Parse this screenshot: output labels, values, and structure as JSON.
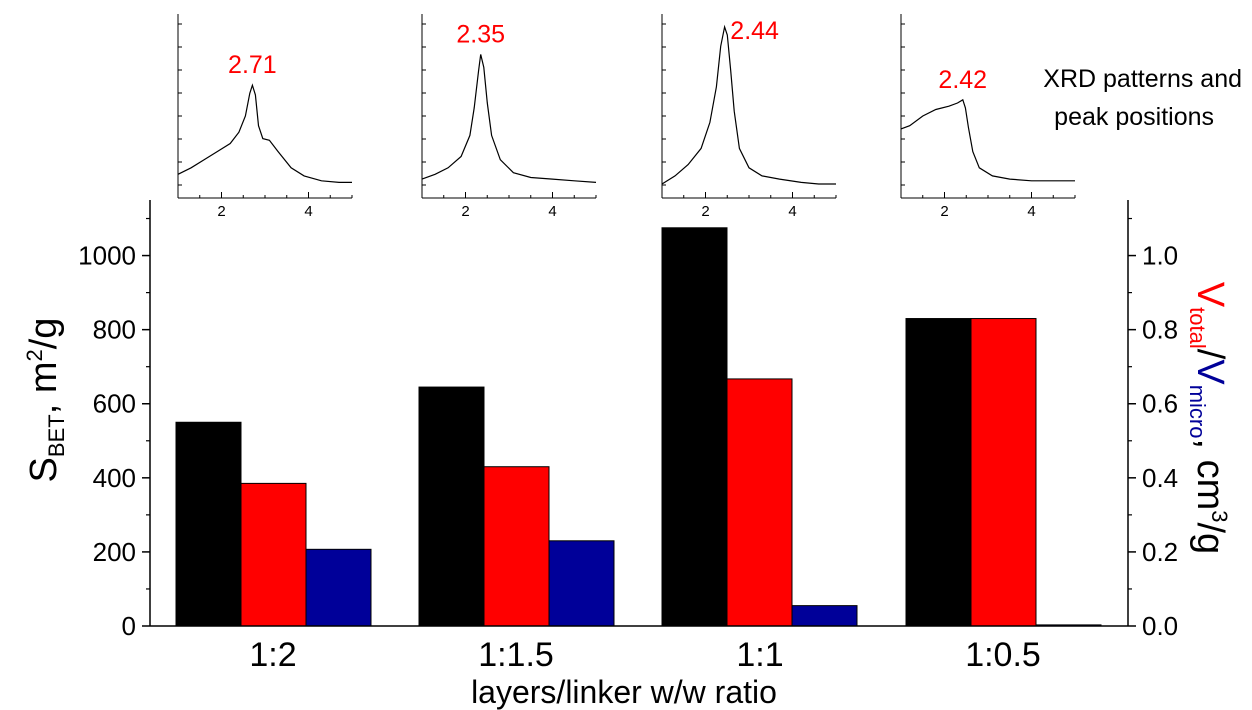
{
  "chart_data": [
    {
      "type": "bar",
      "categories": [
        "1:2",
        "1:1.5",
        "1:1",
        "1:0.5"
      ],
      "xlabel": "layers/linker w/w ratio",
      "ylabel_left": {
        "main": "S",
        "sub": "BET",
        "tail": ", m",
        "sup": "2",
        "end": "/g"
      },
      "ylabel_right": {
        "v1": "V",
        "v1_sub": "total",
        "slash": "/",
        "v2": "V",
        "v2_sub": "micro",
        "tail": ", cm",
        "sup": "3",
        "end": "/g"
      },
      "ylim_left": [
        0,
        1150
      ],
      "yticks_left": [
        0,
        200,
        400,
        600,
        800,
        1000
      ],
      "ylim_right": [
        0,
        1.15
      ],
      "yticks_right": [
        "0.0",
        "0.2",
        "0.4",
        "0.6",
        "0.8",
        "1.0"
      ],
      "series": [
        {
          "axis": "left",
          "values": [
            550,
            645,
            1075,
            830
          ],
          "color": "#000000"
        },
        {
          "axis": "right",
          "values": [
            0.385,
            0.43,
            0.667,
            0.83
          ],
          "color": "#ff0000"
        },
        {
          "axis": "right",
          "values": [
            0.207,
            0.23,
            0.055,
            0.003
          ],
          "color": "#000099"
        }
      ]
    },
    {
      "type": "line",
      "title": "XRD patterns and peak positions",
      "x_ticks": [
        "2",
        "4"
      ],
      "xlim": [
        1,
        5
      ],
      "insets": [
        {
          "peak_label": "2.71",
          "peak_x": 2.71,
          "points": [
            [
              1.0,
              0.06
            ],
            [
              1.3,
              0.1
            ],
            [
              1.6,
              0.15
            ],
            [
              1.9,
              0.2
            ],
            [
              2.2,
              0.25
            ],
            [
              2.4,
              0.32
            ],
            [
              2.55,
              0.42
            ],
            [
              2.65,
              0.56
            ],
            [
              2.71,
              0.61
            ],
            [
              2.78,
              0.55
            ],
            [
              2.85,
              0.36
            ],
            [
              2.95,
              0.28
            ],
            [
              3.1,
              0.27
            ],
            [
              3.3,
              0.2
            ],
            [
              3.6,
              0.1
            ],
            [
              3.9,
              0.05
            ],
            [
              4.3,
              0.02
            ],
            [
              4.7,
              0.01
            ],
            [
              5.0,
              0.01
            ]
          ]
        },
        {
          "peak_label": "2.35",
          "peak_x": 2.35,
          "points": [
            [
              1.0,
              0.03
            ],
            [
              1.3,
              0.06
            ],
            [
              1.6,
              0.1
            ],
            [
              1.9,
              0.17
            ],
            [
              2.1,
              0.3
            ],
            [
              2.2,
              0.47
            ],
            [
              2.3,
              0.7
            ],
            [
              2.35,
              0.8
            ],
            [
              2.42,
              0.72
            ],
            [
              2.5,
              0.5
            ],
            [
              2.6,
              0.3
            ],
            [
              2.8,
              0.15
            ],
            [
              3.1,
              0.07
            ],
            [
              3.5,
              0.04
            ],
            [
              4.0,
              0.03
            ],
            [
              4.5,
              0.02
            ],
            [
              5.0,
              0.01
            ]
          ]
        },
        {
          "peak_label": "2.44",
          "peak_x": 2.44,
          "points": [
            [
              1.0,
              0.0
            ],
            [
              1.3,
              0.05
            ],
            [
              1.6,
              0.12
            ],
            [
              1.9,
              0.22
            ],
            [
              2.1,
              0.38
            ],
            [
              2.25,
              0.6
            ],
            [
              2.35,
              0.85
            ],
            [
              2.44,
              0.97
            ],
            [
              2.5,
              0.92
            ],
            [
              2.58,
              0.7
            ],
            [
              2.66,
              0.45
            ],
            [
              2.78,
              0.22
            ],
            [
              3.0,
              0.1
            ],
            [
              3.3,
              0.05
            ],
            [
              3.7,
              0.03
            ],
            [
              4.2,
              0.01
            ],
            [
              4.6,
              0.0
            ],
            [
              5.0,
              0.0
            ]
          ]
        },
        {
          "peak_label": "2.42",
          "peak_x": 2.42,
          "points": [
            [
              1.0,
              0.34
            ],
            [
              1.2,
              0.36
            ],
            [
              1.5,
              0.42
            ],
            [
              1.8,
              0.46
            ],
            [
              2.1,
              0.48
            ],
            [
              2.3,
              0.5
            ],
            [
              2.42,
              0.52
            ],
            [
              2.48,
              0.47
            ],
            [
              2.55,
              0.35
            ],
            [
              2.65,
              0.2
            ],
            [
              2.8,
              0.1
            ],
            [
              3.1,
              0.05
            ],
            [
              3.5,
              0.03
            ],
            [
              4.0,
              0.02
            ],
            [
              4.5,
              0.02
            ],
            [
              5.0,
              0.02
            ]
          ]
        }
      ]
    }
  ]
}
